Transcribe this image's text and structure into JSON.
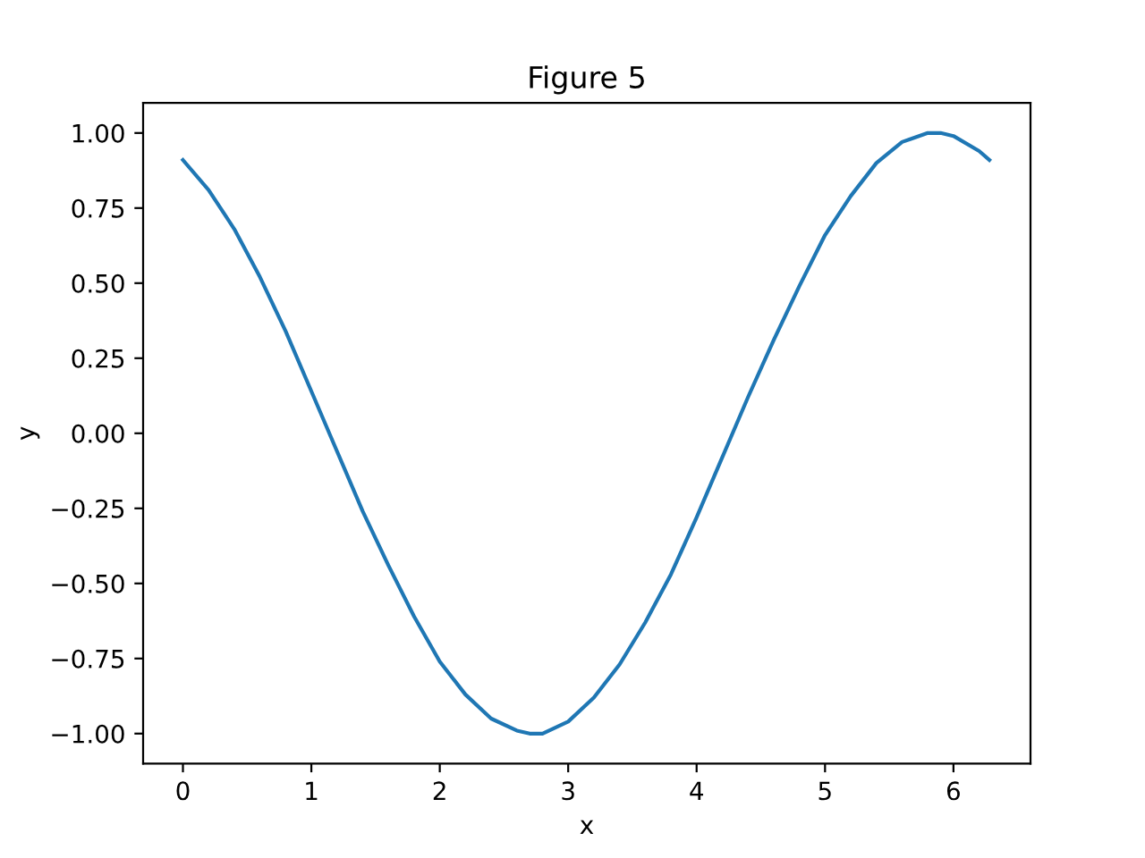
{
  "chart_data": {
    "type": "line",
    "title": "Figure 5",
    "xlabel": "x",
    "ylabel": "y",
    "x": [
      0,
      0.2,
      0.4,
      0.6,
      0.8,
      1.0,
      1.2,
      1.4,
      1.6,
      1.8,
      2.0,
      2.2,
      2.4,
      2.6,
      2.7,
      2.8,
      3.0,
      3.2,
      3.4,
      3.6,
      3.8,
      4.0,
      4.2,
      4.4,
      4.6,
      4.8,
      5.0,
      5.2,
      5.4,
      5.6,
      5.8,
      5.9,
      6.0,
      6.2,
      6.28
    ],
    "series": [
      {
        "color": "#1f77b4",
        "values": [
          0.91,
          0.81,
          0.68,
          0.52,
          0.34,
          0.14,
          -0.06,
          -0.26,
          -0.44,
          -0.61,
          -0.76,
          -0.87,
          -0.95,
          -0.99,
          -1.0,
          -1.0,
          -0.96,
          -0.88,
          -0.77,
          -0.63,
          -0.47,
          -0.28,
          -0.08,
          0.12,
          0.31,
          0.49,
          0.66,
          0.79,
          0.9,
          0.97,
          1.0,
          1.0,
          0.99,
          0.94,
          0.91
        ]
      }
    ],
    "xlim": [
      -0.31,
      6.6
    ],
    "ylim": [
      -1.1,
      1.1
    ],
    "xticks": [
      0,
      1,
      2,
      3,
      4,
      5,
      6
    ],
    "yticks": [
      {
        "value": -1,
        "label": "−1.00"
      },
      {
        "value": -0.75,
        "label": "−0.75"
      },
      {
        "value": -0.5,
        "label": "−0.50"
      },
      {
        "value": -0.25,
        "label": "−0.25"
      },
      {
        "value": 0,
        "label": "0.00"
      },
      {
        "value": 0.25,
        "label": "0.25"
      },
      {
        "value": 0.5,
        "label": "0.50"
      },
      {
        "value": 0.75,
        "label": "0.75"
      },
      {
        "value": 1,
        "label": "1.00"
      }
    ],
    "grid": false,
    "legend": false,
    "marker": "none",
    "line_style": "solid"
  }
}
